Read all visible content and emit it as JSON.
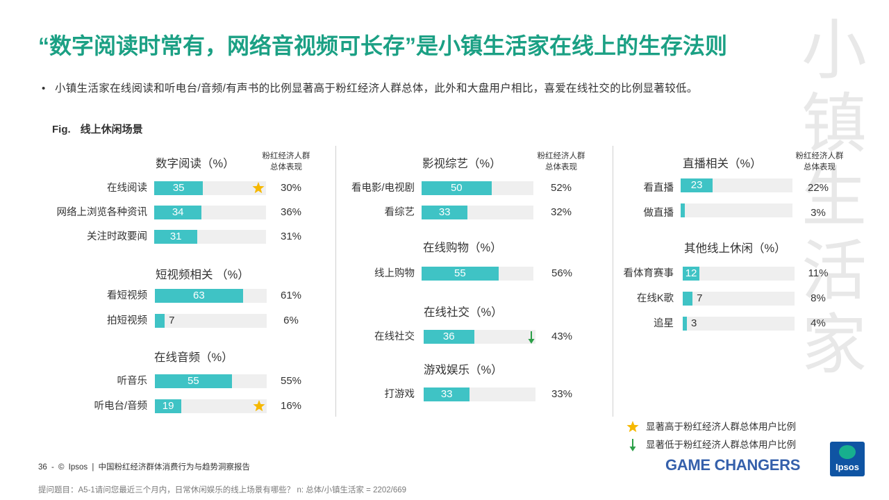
{
  "slide": {
    "title": "“数字阅读时常有，网络音视频可长存”是小镇生活家在线上的生存法则",
    "bullet_symbol": "•",
    "bullet": "小镇生活家在线阅读和听电台/音频/有声书的比例显著高于粉红经济人群总体，此外和大盘用户相比，喜爱在线社交的比例显著较低。",
    "fig_label": "Fig.",
    "fig_title": "线上休闲场景",
    "watermark": "小镇生活家",
    "benchmark_header": [
      "粉红经济人群",
      "总体表现"
    ],
    "benchmark_suffix": "%"
  },
  "legend": [
    {
      "icon": "star-icon",
      "text": "显著高于粉红经济人群总体用户比例"
    },
    {
      "icon": "down-arrow-icon",
      "text": "显著低于粉红经济人群总体用户比例"
    }
  ],
  "footer": {
    "page_info": "36 - © Ipsos | 中国粉红经济群体消费行为与趋势洞察报告",
    "tagline": "GAME CHANGERS",
    "logo_text": "Ipsos",
    "question": "提问题目：A5-1请问您最近三个月内，日常休闲娱乐的线上场景有哪些？ n: 总体/小镇生活家 = 2202/669"
  },
  "colors": {
    "title_green": "#1ba084",
    "text": "#333333",
    "muted": "#7a7a7a",
    "bar": "#3fc3c5",
    "track": "#efefef",
    "star": "#f6b800",
    "down_arrow": "#2c9f48",
    "divider": "#cfcfcf",
    "watermark": "#e8e8e8",
    "tagline_blue": "#3560ab",
    "logo_blue": "#0f54a3",
    "logo_green": "#17b08e"
  },
  "chart_data": [
    {
      "type": "bar",
      "orientation": "horizontal",
      "title": "数字阅读（%）",
      "categories": [
        "在线阅读",
        "网络上浏览各种资讯",
        "关注时政要闻"
      ],
      "values": [
        35,
        34,
        31
      ],
      "benchmark": [
        30,
        36,
        31
      ],
      "markers": [
        "star",
        null,
        null
      ],
      "xlim": [
        0,
        80
      ]
    },
    {
      "type": "bar",
      "orientation": "horizontal",
      "title": "短视频相关 （%）",
      "categories": [
        "看短视频",
        "拍短视频"
      ],
      "values": [
        63,
        7
      ],
      "benchmark": [
        61,
        6
      ],
      "markers": [
        null,
        null
      ],
      "xlim": [
        0,
        80
      ]
    },
    {
      "type": "bar",
      "orientation": "horizontal",
      "title": "在线音频（%）",
      "categories": [
        "听音乐",
        "听电台/音频"
      ],
      "values": [
        55,
        19
      ],
      "benchmark": [
        55,
        16
      ],
      "markers": [
        null,
        "star"
      ],
      "xlim": [
        0,
        80
      ]
    },
    {
      "type": "bar",
      "orientation": "horizontal",
      "title": "影视综艺（%）",
      "categories": [
        "看电影/电视剧",
        "看综艺"
      ],
      "values": [
        50,
        33
      ],
      "benchmark": [
        52,
        32
      ],
      "markers": [
        null,
        null
      ],
      "xlim": [
        0,
        80
      ]
    },
    {
      "type": "bar",
      "orientation": "horizontal",
      "title": "在线购物（%）",
      "categories": [
        "线上购物"
      ],
      "values": [
        55
      ],
      "benchmark": [
        56
      ],
      "markers": [
        null
      ],
      "xlim": [
        0,
        80
      ]
    },
    {
      "type": "bar",
      "orientation": "horizontal",
      "title": "在线社交（%）",
      "categories": [
        "在线社交"
      ],
      "values": [
        36
      ],
      "benchmark": [
        43
      ],
      "markers": [
        "down-arrow"
      ],
      "xlim": [
        0,
        80
      ]
    },
    {
      "type": "bar",
      "orientation": "horizontal",
      "title": "游戏娱乐（%）",
      "categories": [
        "打游戏"
      ],
      "values": [
        33
      ],
      "benchmark": [
        33
      ],
      "markers": [
        null
      ],
      "xlim": [
        0,
        80
      ]
    },
    {
      "type": "bar",
      "orientation": "horizontal",
      "title": "直播相关（%）",
      "categories": [
        "看直播",
        "做直播"
      ],
      "values": [
        23,
        3
      ],
      "data_labels": [
        "23",
        null
      ],
      "benchmark": [
        22,
        3
      ],
      "markers": [
        null,
        null
      ],
      "xlim": [
        0,
        80
      ]
    },
    {
      "type": "bar",
      "orientation": "horizontal",
      "title": "其他线上休闲（%）",
      "categories": [
        "看体育赛事",
        "在线K歌",
        "追星"
      ],
      "values": [
        12,
        7,
        3
      ],
      "benchmark": [
        11,
        8,
        4
      ],
      "markers": [
        null,
        null,
        null
      ],
      "xlim": [
        0,
        80
      ]
    }
  ]
}
